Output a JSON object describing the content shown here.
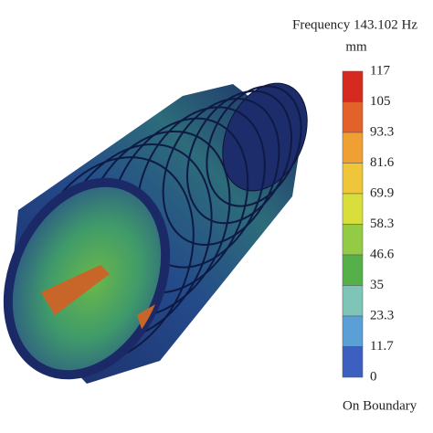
{
  "legend": {
    "title": "Frequency 143.102 Hz",
    "unit": "mm",
    "labels": [
      "117",
      "105",
      "93.3",
      "81.6",
      "69.9",
      "58.3",
      "46.6",
      "35",
      "23.3",
      "11.7",
      "0"
    ],
    "colors": [
      "#d42a20",
      "#e3622a",
      "#f0a033",
      "#efc63a",
      "#d8df3a",
      "#93cb45",
      "#55b04a",
      "#7ec5b8",
      "#5a9fd6",
      "#3d5fbf"
    ],
    "footer": "On Boundary"
  }
}
